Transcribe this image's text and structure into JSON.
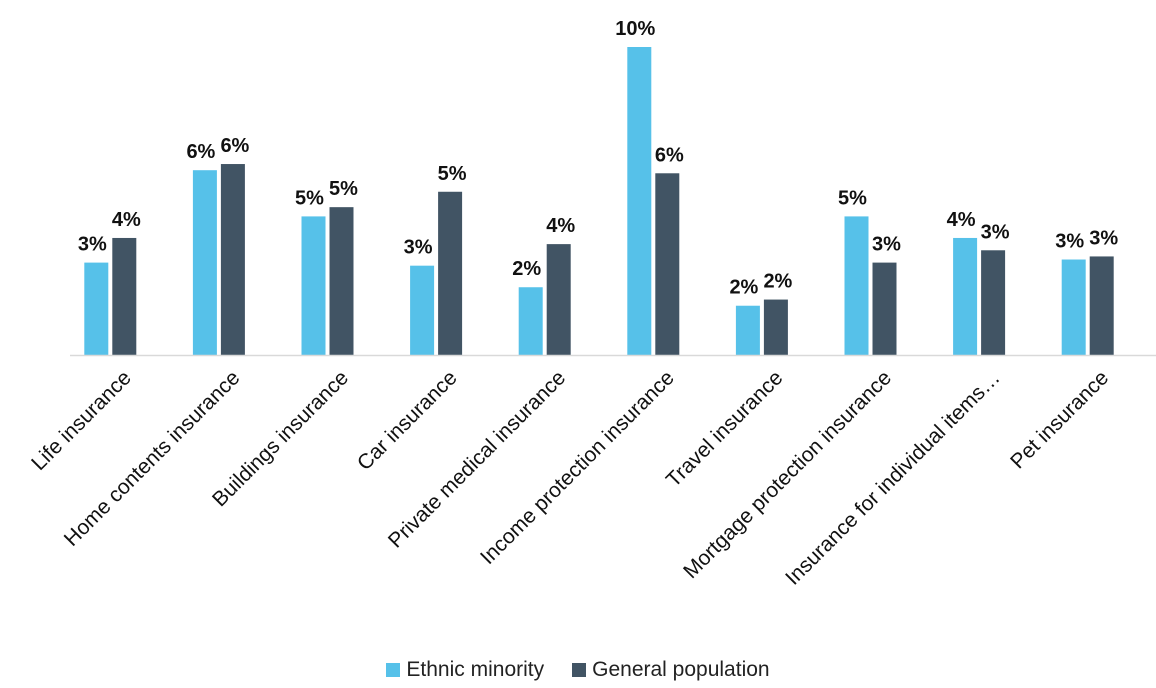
{
  "chart_data": {
    "type": "bar",
    "categories": [
      "Life insurance",
      "Home contents insurance",
      "Buildings insurance",
      "Car insurance",
      "Private medical insurance",
      "Income protection insurance",
      "Travel insurance",
      "Mortgage protection insurance",
      "Insurance for individual items…",
      "Pet insurance"
    ],
    "series": [
      {
        "name": "Ethnic minority",
        "color": "#56c1e9",
        "values": [
          3.0,
          6.0,
          4.5,
          2.9,
          2.2,
          10.0,
          1.6,
          4.5,
          3.8,
          3.1
        ],
        "labels": [
          "3%",
          "6%",
          "5%",
          "3%",
          "2%",
          "10%",
          "2%",
          "5%",
          "4%",
          "3%"
        ]
      },
      {
        "name": "General population",
        "color": "#415464",
        "values": [
          3.8,
          6.2,
          4.8,
          5.3,
          3.6,
          5.9,
          1.8,
          3.0,
          3.4,
          3.2
        ],
        "labels": [
          "4%",
          "6%",
          "5%",
          "5%",
          "4%",
          "6%",
          "2%",
          "3%",
          "3%",
          "3%"
        ]
      }
    ],
    "ylim": [
      0,
      10
    ],
    "xlabel": "",
    "ylabel": "",
    "grid": false,
    "legend": "bottom"
  }
}
